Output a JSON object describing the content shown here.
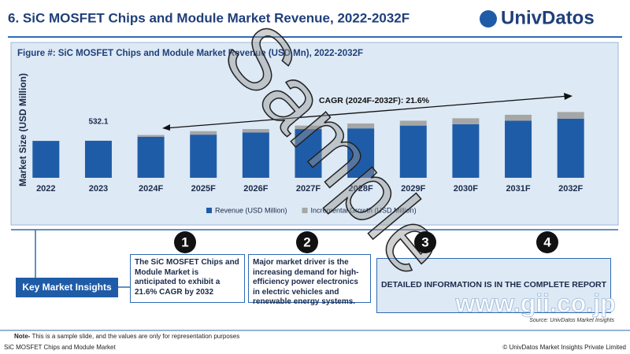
{
  "header": {
    "title": "6. SiC MOSFET Chips and Module Market Revenue, 2022-2032F",
    "logo": "UnivDatos"
  },
  "chart_data": {
    "type": "bar",
    "stacked": true,
    "title": "Figure #: SiC MOSFET Chips and Module Market Revenue (USD Mn), 2022-2032F",
    "y_label": "Market Size (USD Million)",
    "categories": [
      "2022",
      "2023",
      "2024F",
      "2025F",
      "2026F",
      "2027F",
      "2028F",
      "2029F",
      "2030F",
      "2031F",
      "2032F"
    ],
    "series": [
      {
        "name": "Revenue (USD Million)",
        "color": "#1f5ca8",
        "values": [
          530,
          532.1,
          590,
          620,
          650,
          700,
          710,
          750,
          770,
          820,
          850
        ],
        "value_labels": [
          null,
          "532.1",
          null,
          null,
          null,
          null,
          null,
          null,
          null,
          null,
          null
        ]
      },
      {
        "name": "Incremental Growth (USD Million)",
        "color": "#a6a6a6",
        "values": [
          0,
          0,
          25,
          50,
          50,
          50,
          70,
          70,
          85,
          85,
          95
        ]
      }
    ],
    "ylim": [
      0,
      1650
    ],
    "annotation": "CAGR (2024F-2032F): 21.6%",
    "legend": "bottom"
  },
  "insights": {
    "label": "Key Market Insights",
    "numbers": [
      "1",
      "2",
      "3",
      "4"
    ],
    "box1": "The SiC MOSFET Chips and Module Market is anticipated to exhibit a 21.6% CAGR by 2032",
    "box2": "Major market driver is the increasing demand for high-efficiency power electronics in electric vehicles and renewable energy systems.",
    "box3": "DETAILED INFORMATION IS IN THE COMPLETE REPORT",
    "source": "Source: UnivDatos Market Insights"
  },
  "watermarks": {
    "sample": "Sample",
    "site": "www.gii.co.jp"
  },
  "footer": {
    "note_label": "Note-",
    "note_text": "This is a sample slide, and the values are only for representation purposes",
    "left": "SiC MOSFET Chips and Module Market",
    "right": "© UnivDatos Market Insights Private Limited"
  }
}
